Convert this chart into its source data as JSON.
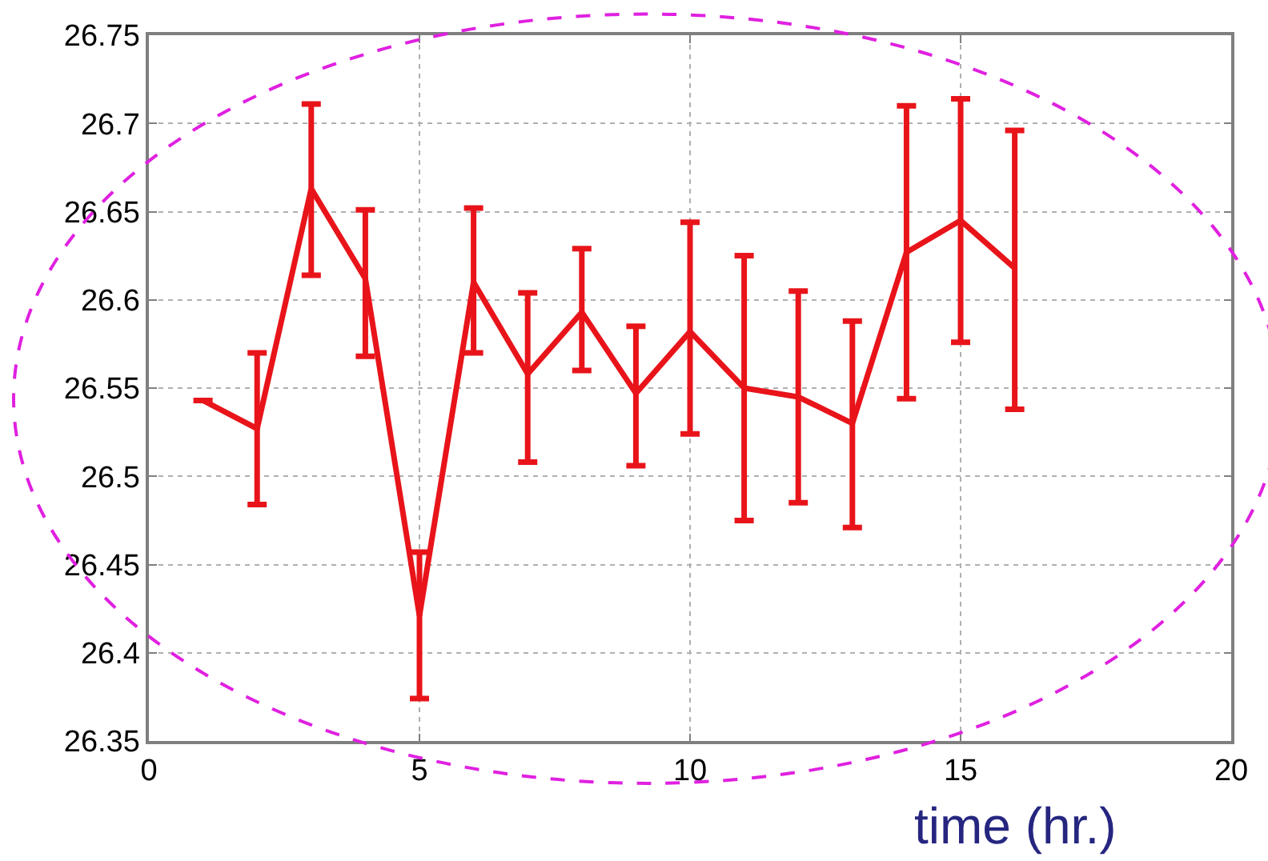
{
  "chart_data": {
    "type": "line",
    "xlabel": "time (hr.)",
    "x": [
      1,
      2,
      3,
      4,
      5,
      6,
      7,
      8,
      9,
      10,
      11,
      12,
      13,
      14,
      15,
      16
    ],
    "series": [
      {
        "color": "#e8141a",
        "values": [
          26.543,
          26.527,
          26.663,
          26.612,
          26.421,
          26.61,
          26.558,
          26.593,
          26.547,
          26.582,
          26.55,
          26.545,
          26.53,
          26.627,
          26.645,
          26.618
        ],
        "errors": [
          null,
          [
            26.484,
            26.57
          ],
          [
            26.614,
            26.711
          ],
          [
            26.568,
            26.651
          ],
          [
            26.374,
            26.457
          ],
          [
            26.57,
            26.652
          ],
          [
            26.508,
            26.604
          ],
          [
            26.56,
            26.629
          ],
          [
            26.506,
            26.585
          ],
          [
            26.524,
            26.644
          ],
          [
            26.475,
            26.625
          ],
          [
            26.485,
            26.605
          ],
          [
            26.471,
            26.588
          ],
          [
            26.544,
            26.71
          ],
          [
            26.576,
            26.714
          ],
          [
            26.538,
            26.696
          ]
        ]
      }
    ],
    "xlim": [
      0,
      20
    ],
    "xticks": [
      0,
      5,
      10,
      15,
      20
    ],
    "ylim": [
      26.35,
      26.75
    ],
    "yticks": [
      26.35,
      26.4,
      26.45,
      26.5,
      26.55,
      26.6,
      26.65,
      26.7,
      26.75
    ],
    "grid": true,
    "marker": "none",
    "line_style": "solid"
  }
}
